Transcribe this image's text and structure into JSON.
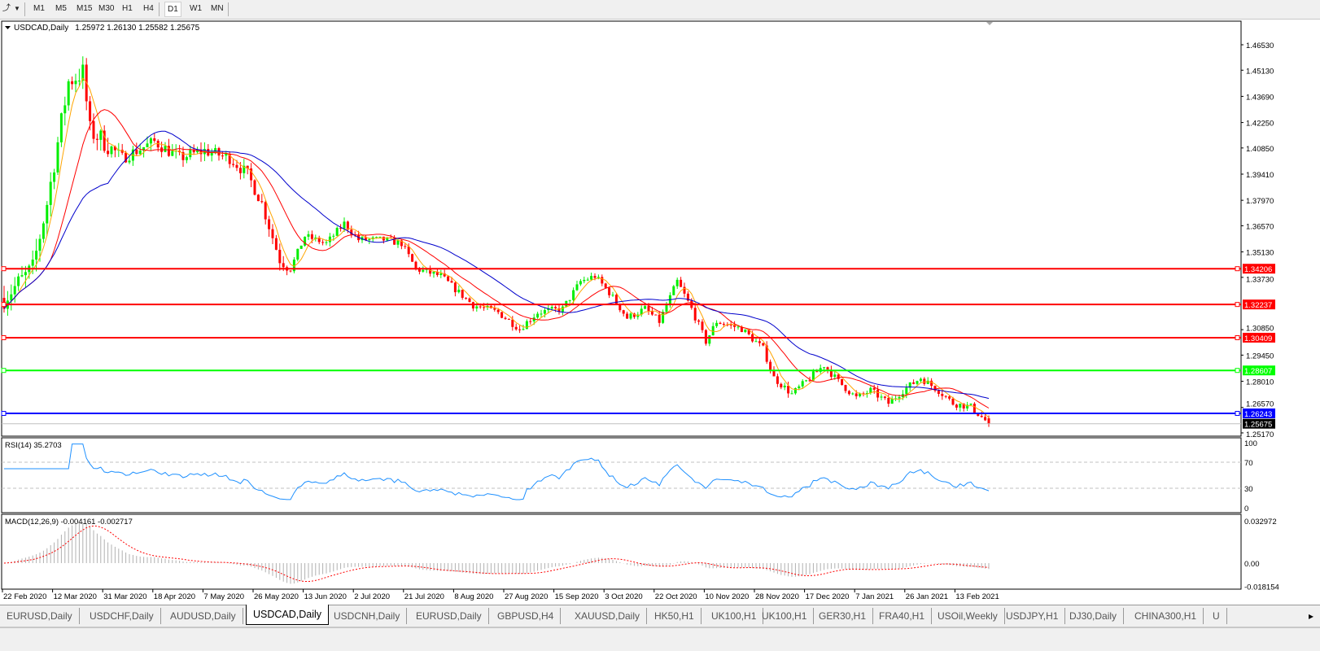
{
  "toolbar": {
    "icons": [
      "drawing-tools-icon",
      "dropdown-arrow-icon"
    ],
    "timeframes": [
      {
        "label": "M1",
        "active": false
      },
      {
        "label": "M5",
        "active": false
      },
      {
        "label": "M15",
        "active": false
      },
      {
        "label": "M30",
        "active": false
      },
      {
        "label": "H1",
        "active": false
      },
      {
        "label": "H4",
        "active": false
      },
      {
        "label": "D1",
        "active": true
      },
      {
        "label": "W1",
        "active": false
      },
      {
        "label": "MN",
        "active": false
      }
    ]
  },
  "chart": {
    "header": "USDCAD,Daily",
    "ohlc": "1.25972 1.26130 1.25582 1.25675",
    "colors": {
      "bull": "#00ee00",
      "bear": "#ff0000",
      "ma_fast": "#ffa500",
      "ma_mid": "#ff0000",
      "ma_slow": "#0000cc",
      "rsi": "#1e90ff",
      "macd_signal": "#ff0000",
      "macd_hist": "#b0b0b0"
    },
    "price_axis": [
      "1.46530",
      "1.45130",
      "1.43690",
      "1.42250",
      "1.40850",
      "1.39410",
      "1.37970",
      "1.36570",
      "1.35130",
      "1.33730",
      "1.30850",
      "1.29450",
      "1.28010",
      "1.26570",
      "1.25170"
    ],
    "horizontal_lines": [
      {
        "price": "1.34206",
        "color": "#ff0000"
      },
      {
        "price": "1.32237",
        "color": "#ff0000"
      },
      {
        "price": "1.30409",
        "color": "#ff0000"
      },
      {
        "price": "1.28607",
        "color": "#00ff00"
      },
      {
        "price": "1.26243",
        "color": "#0000ff"
      }
    ],
    "current_price": "1.25675",
    "date_axis": [
      "22 Feb 2020",
      "12 Mar 2020",
      "31 Mar 2020",
      "18 Apr 2020",
      "7 May 2020",
      "26 May 2020",
      "13 Jun 2020",
      "2 Jul 2020",
      "21 Jul 2020",
      "8 Aug 2020",
      "27 Aug 2020",
      "15 Sep 2020",
      "3 Oct 2020",
      "22 Oct 2020",
      "10 Nov 2020",
      "28 Nov 2020",
      "17 Dec 2020",
      "7 Jan 2021",
      "26 Jan 2021",
      "13 Feb 2021"
    ],
    "bars_between_date_labels": 14,
    "close_anchors": [
      [
        0,
        1.326
      ],
      [
        8,
        1.342
      ],
      [
        12,
        1.378
      ],
      [
        18,
        1.445
      ],
      [
        22,
        1.45
      ],
      [
        24,
        1.418
      ],
      [
        28,
        1.412
      ],
      [
        33,
        1.403
      ],
      [
        42,
        1.412
      ],
      [
        49,
        1.403
      ],
      [
        56,
        1.407
      ],
      [
        63,
        1.403
      ],
      [
        68,
        1.394
      ],
      [
        72,
        1.378
      ],
      [
        77,
        1.347
      ],
      [
        80,
        1.342
      ],
      [
        84,
        1.36
      ],
      [
        90,
        1.356
      ],
      [
        95,
        1.367
      ],
      [
        99,
        1.358
      ],
      [
        106,
        1.358
      ],
      [
        111,
        1.356
      ],
      [
        115,
        1.342
      ],
      [
        122,
        1.338
      ],
      [
        127,
        1.329
      ],
      [
        131,
        1.322
      ],
      [
        138,
        1.318
      ],
      [
        144,
        1.309
      ],
      [
        149,
        1.318
      ],
      [
        156,
        1.32
      ],
      [
        161,
        1.335
      ],
      [
        165,
        1.338
      ],
      [
        169,
        1.329
      ],
      [
        174,
        1.315
      ],
      [
        179,
        1.32
      ],
      [
        183,
        1.313
      ],
      [
        188,
        1.335
      ],
      [
        192,
        1.32
      ],
      [
        196,
        1.302
      ],
      [
        199,
        1.313
      ],
      [
        206,
        1.309
      ],
      [
        212,
        1.298
      ],
      [
        215,
        1.282
      ],
      [
        220,
        1.273
      ],
      [
        224,
        1.28
      ],
      [
        229,
        1.289
      ],
      [
        233,
        1.28
      ],
      [
        238,
        1.271
      ],
      [
        242,
        1.275
      ],
      [
        247,
        1.268
      ],
      [
        251,
        1.275
      ],
      [
        256,
        1.282
      ],
      [
        261,
        1.275
      ],
      [
        265,
        1.268
      ],
      [
        270,
        1.266
      ],
      [
        275,
        1.2567
      ]
    ],
    "rsi": {
      "label": "RSI(14) 35.2703",
      "axis": [
        "100",
        "70",
        "30",
        "0"
      ],
      "levels": [
        70,
        30
      ]
    },
    "macd": {
      "label": "MACD(12,26,9) -0.004161 -0.002717",
      "axis": [
        "0.032972",
        "0.00",
        "-0.018154"
      ]
    }
  },
  "tabs": [
    {
      "label": "EURUSD,Daily",
      "active": false
    },
    {
      "label": "USDCHF,Daily",
      "active": false
    },
    {
      "label": "AUDUSD,Daily",
      "active": false
    },
    {
      "label": "USDCAD,Daily",
      "active": true
    },
    {
      "label": "USDCNH,Daily",
      "active": false
    },
    {
      "label": "EURUSD,Daily",
      "active": false
    },
    {
      "label": "GBPUSD,H4",
      "active": false
    },
    {
      "label": "XAUUSD,Daily",
      "active": false
    },
    {
      "label": "HK50,H1",
      "active": false
    },
    {
      "label": "UK100,H1",
      "active": false
    },
    {
      "label": "UK100,H1",
      "active": false
    },
    {
      "label": "GER30,H1",
      "active": false
    },
    {
      "label": "FRA40,H1",
      "active": false
    },
    {
      "label": "USOil,Weekly",
      "active": false
    },
    {
      "label": "USDJPY,H1",
      "active": false
    },
    {
      "label": "DJ30,Daily",
      "active": false
    },
    {
      "label": "CHINA300,H1",
      "active": false
    },
    {
      "label": "U",
      "active": false
    }
  ]
}
